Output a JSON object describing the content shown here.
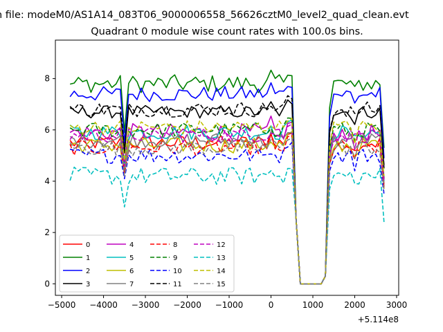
{
  "chart_data": {
    "type": "line",
    "suptitle": "n file: modeM0/AS1A14_083T06_9000006558_56626cztM0_level2_quad_clean.evt",
    "title": "Quadrant 0 module wise count rates with 100.0s bins.",
    "xlabel": "",
    "ylabel": "",
    "x_offset_label": "+5.114e8",
    "xlim": [
      -5150,
      3050
    ],
    "ylim": [
      -0.45,
      9.5
    ],
    "x_ticks": [
      -5000,
      -4000,
      -3000,
      -2000,
      -1000,
      0,
      1000,
      2000,
      3000
    ],
    "x_tick_labels": [
      "−5000",
      "−4000",
      "−3000",
      "−2000",
      "−1000",
      "0",
      "1000",
      "2000",
      "3000"
    ],
    "y_ticks": [
      0,
      2,
      4,
      6,
      8
    ],
    "y_tick_labels": [
      "0",
      "2",
      "4",
      "6",
      "8"
    ],
    "grid": false,
    "legend_position": "lower-left",
    "x_start": -4800,
    "x_step": 100,
    "series": [
      {
        "name": "0",
        "color": "#ff0000",
        "dashed": false,
        "base": 5.5,
        "amp": 0.3,
        "dip": 4.5
      },
      {
        "name": "1",
        "color": "#008000",
        "dashed": false,
        "base": 7.8,
        "amp": 0.35,
        "dip": 5.9
      },
      {
        "name": "2",
        "color": "#0000ff",
        "dashed": false,
        "base": 7.4,
        "amp": 0.3,
        "dip": 5.5
      },
      {
        "name": "3",
        "color": "#000000",
        "dashed": false,
        "base": 6.7,
        "amp": 0.25,
        "dip": 5.1
      },
      {
        "name": "4",
        "color": "#bf00bf",
        "dashed": false,
        "base": 5.9,
        "amp": 0.35,
        "dip": 4.7
      },
      {
        "name": "5",
        "color": "#00bfbf",
        "dashed": false,
        "base": 5.9,
        "amp": 0.3,
        "dip": 4.6
      },
      {
        "name": "6",
        "color": "#bfbf00",
        "dashed": false,
        "base": 5.4,
        "amp": 0.3,
        "dip": 4.3
      },
      {
        "name": "7",
        "color": "#808080",
        "dashed": false,
        "base": 5.6,
        "amp": 0.3,
        "dip": 4.4
      },
      {
        "name": "8",
        "color": "#ff0000",
        "dashed": true,
        "base": 5.3,
        "amp": 0.3,
        "dip": 4.3
      },
      {
        "name": "9",
        "color": "#008000",
        "dashed": true,
        "base": 6.0,
        "amp": 0.3,
        "dip": 4.7
      },
      {
        "name": "10",
        "color": "#0000ff",
        "dashed": true,
        "base": 5.0,
        "amp": 0.3,
        "dip": 4.1
      },
      {
        "name": "11",
        "color": "#000000",
        "dashed": true,
        "base": 6.8,
        "amp": 0.3,
        "dip": 5.2
      },
      {
        "name": "12",
        "color": "#bf00bf",
        "dashed": true,
        "base": 5.8,
        "amp": 0.3,
        "dip": 4.6
      },
      {
        "name": "13",
        "color": "#00bfbf",
        "dashed": true,
        "base": 4.2,
        "amp": 0.35,
        "dip": 3.0
      },
      {
        "name": "14",
        "color": "#bfbf00",
        "dashed": true,
        "base": 6.1,
        "amp": 0.3,
        "dip": 4.8
      },
      {
        "name": "15",
        "color": "#808080",
        "dashed": true,
        "base": 5.3,
        "amp": 0.3,
        "dip": 4.2
      }
    ],
    "gap_start": 600,
    "gap_values": [
      2.5,
      0.0,
      0.0,
      0.0,
      0.0,
      0.0,
      0.0,
      0.3
    ],
    "end_x": 2700
  }
}
